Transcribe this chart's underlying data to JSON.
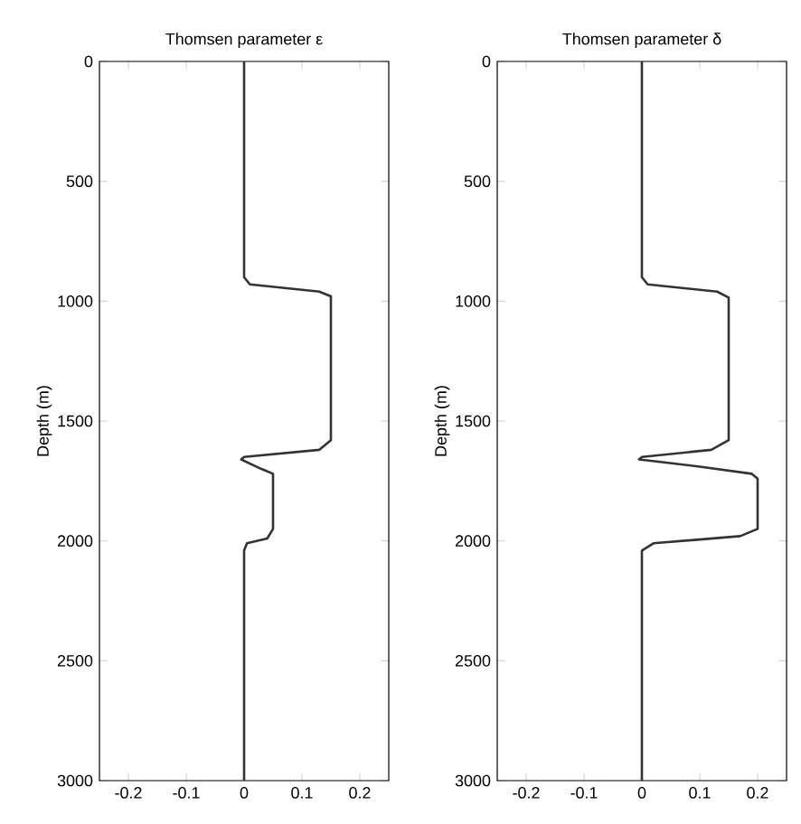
{
  "chart_data": [
    {
      "type": "line",
      "title": "Thomsen parameter ε",
      "ylabel": "Depth (m)",
      "xlim": [
        -0.25,
        0.25
      ],
      "xticks": [
        -0.2,
        -0.1,
        0,
        0.1,
        0.2
      ],
      "ylim": [
        3000,
        0
      ],
      "yticks": [
        0,
        500,
        1000,
        1500,
        2000,
        2500,
        3000
      ],
      "marker": "none",
      "line_style": "solid",
      "series": [
        {
          "color": "#333333",
          "x": [
            0,
            0,
            0.01,
            0.13,
            0.15,
            0.15,
            0.13,
            0,
            -0.005,
            0.03,
            0.05,
            0.05,
            0.04,
            0.005,
            0,
            0
          ],
          "values": [
            0,
            900,
            930,
            960,
            980,
            1580,
            1620,
            1650,
            1660,
            1700,
            1720,
            1950,
            1990,
            2010,
            2040,
            3000
          ]
        }
      ]
    },
    {
      "type": "line",
      "title": "Thomsen parameter δ",
      "ylabel": "Depth (m)",
      "xlim": [
        -0.25,
        0.25
      ],
      "xticks": [
        -0.2,
        -0.1,
        0,
        0.1,
        0.2
      ],
      "ylim": [
        3000,
        0
      ],
      "yticks": [
        0,
        500,
        1000,
        1500,
        2000,
        2500,
        3000
      ],
      "marker": "none",
      "line_style": "solid",
      "series": [
        {
          "color": "#333333",
          "x": [
            0,
            0,
            0.01,
            0.13,
            0.15,
            0.15,
            0.12,
            0,
            -0.005,
            0.1,
            0.19,
            0.2,
            0.2,
            0.17,
            0.02,
            0,
            0
          ],
          "values": [
            0,
            900,
            930,
            960,
            985,
            1580,
            1620,
            1650,
            1660,
            1690,
            1720,
            1740,
            1950,
            1980,
            2010,
            2040,
            3000
          ]
        }
      ]
    }
  ]
}
